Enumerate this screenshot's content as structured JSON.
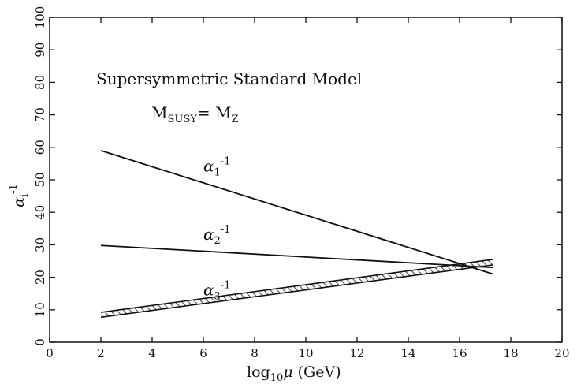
{
  "chart_data": {
    "type": "line",
    "xlabel": {
      "main": "log",
      "sub": "10",
      "var": "μ",
      "unit": " (GeV)"
    },
    "ylabel": {
      "main": "α",
      "sub": "i",
      "sup": "-1"
    },
    "xlim": [
      0,
      20
    ],
    "ylim": [
      0,
      100
    ],
    "x_ticks": [
      0,
      2,
      4,
      6,
      8,
      10,
      12,
      14,
      16,
      18,
      20
    ],
    "y_ticks": [
      0,
      10,
      20,
      30,
      40,
      50,
      60,
      70,
      80,
      90,
      100
    ],
    "grid": false,
    "annotations": {
      "model": "Supersymmetric Standard Model",
      "msusy": {
        "lhs": "M",
        "lhs_sub": "SUSY",
        "eq": "= ",
        "rhs": "M",
        "rhs_sub": "Z"
      }
    },
    "series": [
      {
        "name": "α",
        "name_sub": "1",
        "name_sup": "-1",
        "x": [
          2,
          17.3
        ],
        "y": [
          59,
          21
        ],
        "style": "line",
        "label_at": [
          6.0,
          52.5
        ]
      },
      {
        "name": "α",
        "name_sub": "2",
        "name_sup": "-1",
        "x": [
          2,
          17.3
        ],
        "y": [
          29.8,
          23
        ],
        "style": "line",
        "label_at": [
          6.0,
          31.5
        ]
      },
      {
        "name": "α",
        "name_sub": "3",
        "name_sup": "-1",
        "x": [
          2,
          17.3
        ],
        "y_lower": [
          7.7,
          23.8
        ],
        "y_upper": [
          9.2,
          25.5
        ],
        "style": "hatched-band",
        "label_at": [
          6.0,
          14.5
        ]
      }
    ]
  }
}
